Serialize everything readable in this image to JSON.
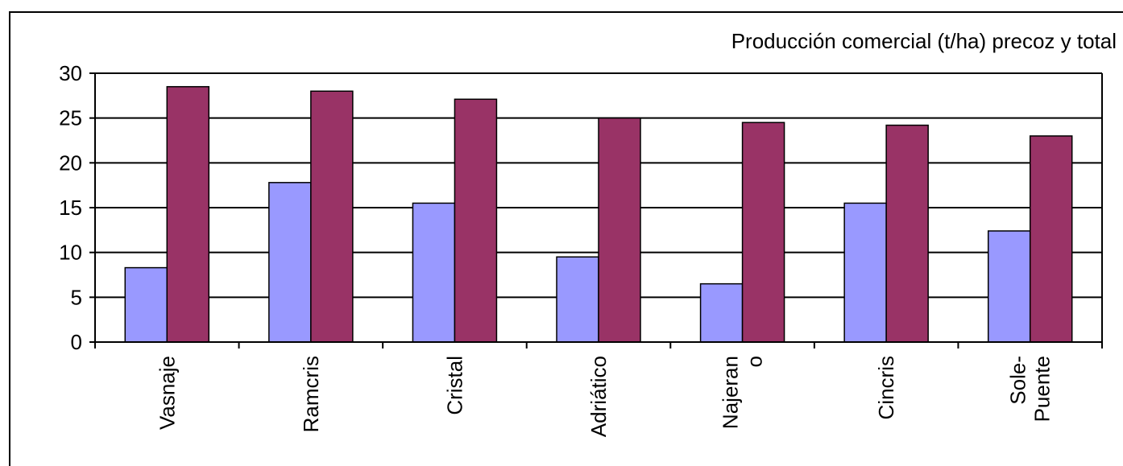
{
  "chart_data": {
    "type": "bar",
    "title": "Producción comercial (t/ha) precoz y total",
    "categories": [
      [
        "Vasnaje"
      ],
      [
        "Ramcris"
      ],
      [
        "Cristal"
      ],
      [
        "Adriático"
      ],
      [
        "Najeran",
        "o"
      ],
      [
        "Cincris"
      ],
      [
        "Sole-",
        "Puente"
      ]
    ],
    "series": [
      {
        "values": [
          8.3,
          17.8,
          15.5,
          9.5,
          6.5,
          15.5,
          12.4
        ],
        "color": "#9999ff"
      },
      {
        "values": [
          28.5,
          28.0,
          27.1,
          25.0,
          24.5,
          24.2,
          23.0
        ],
        "color": "#993366"
      }
    ],
    "ylim": [
      0,
      30
    ],
    "yticks": [
      0,
      5,
      10,
      15,
      20,
      25,
      30
    ],
    "grid": true,
    "legend": "none",
    "xlabel": "",
    "ylabel": ""
  }
}
